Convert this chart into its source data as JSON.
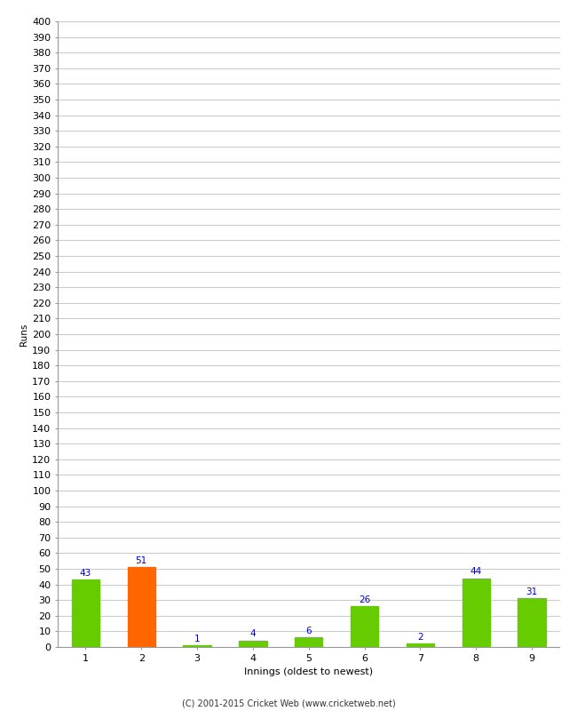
{
  "xlabel": "Innings (oldest to newest)",
  "ylabel": "Runs",
  "categories": [
    "1",
    "2",
    "3",
    "4",
    "5",
    "6",
    "7",
    "8",
    "9"
  ],
  "values": [
    43,
    51,
    1,
    4,
    6,
    26,
    2,
    44,
    31
  ],
  "bar_colors": [
    "#66cc00",
    "#ff6600",
    "#66cc00",
    "#66cc00",
    "#66cc00",
    "#66cc00",
    "#66cc00",
    "#66cc00",
    "#66cc00"
  ],
  "label_color": "#0000cc",
  "ylim": [
    0,
    400
  ],
  "yticks": [
    0,
    10,
    20,
    30,
    40,
    50,
    60,
    70,
    80,
    90,
    100,
    110,
    120,
    130,
    140,
    150,
    160,
    170,
    180,
    190,
    200,
    210,
    220,
    230,
    240,
    250,
    260,
    270,
    280,
    290,
    300,
    310,
    320,
    330,
    340,
    350,
    360,
    370,
    380,
    390,
    400
  ],
  "grid_color": "#cccccc",
  "background_color": "#ffffff",
  "footer": "(C) 2001-2015 Cricket Web (www.cricketweb.net)",
  "bar_width": 0.5,
  "label_fontsize": 7.5,
  "axis_fontsize": 8,
  "ylabel_fontsize": 7.5
}
